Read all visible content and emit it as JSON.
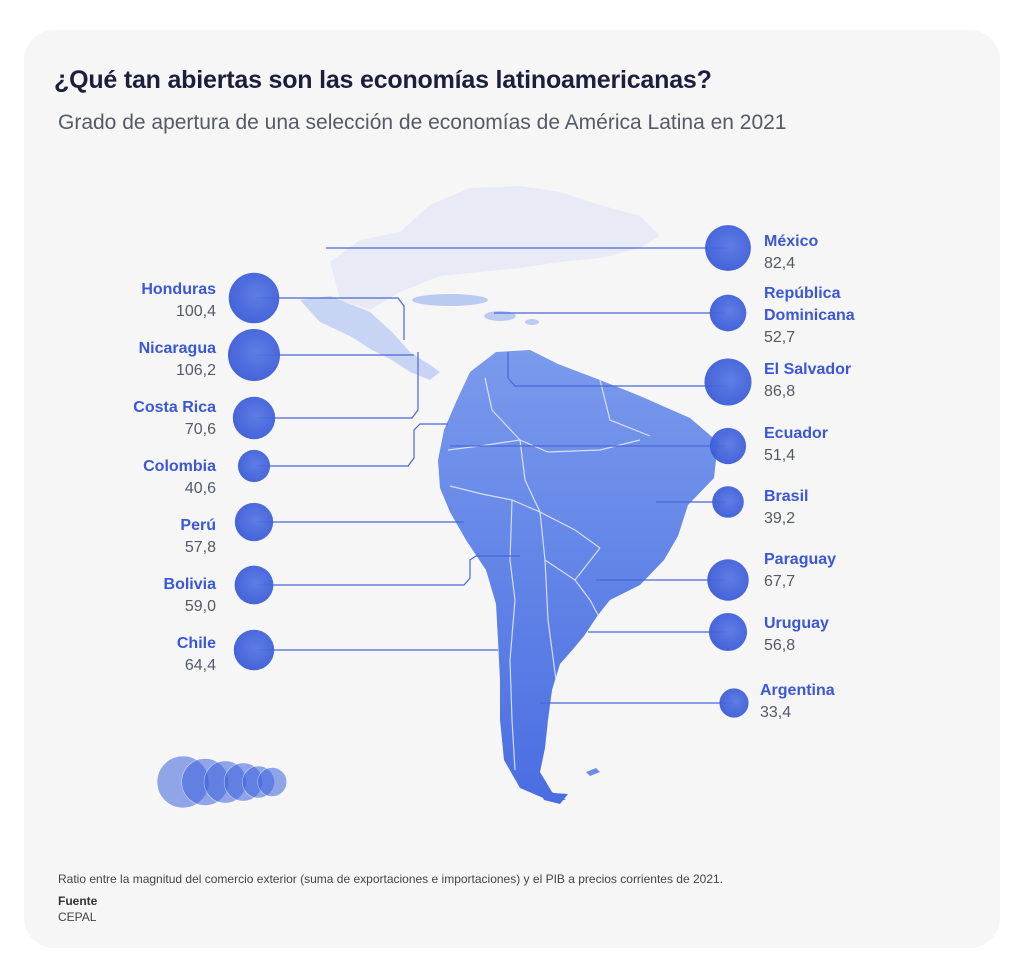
{
  "title": "¿Qué tan abiertas son las economías latinoamericanas?",
  "subtitle": "Grado de apertura de una selección de economías de América Latina en 2021",
  "note": "Ratio entre la magnitud del comercio exterior (suma de exportaciones e importaciones) y el PIB a precios corrientes de 2021.",
  "source_label": "Fuente",
  "source_name": "CEPAL",
  "colors": {
    "label": "#3a57d8",
    "bubble": "#3d63dc",
    "line": "#4a66d6",
    "land": "#5b80e6"
  },
  "chart_data": {
    "type": "bubble-map",
    "countries": [
      {
        "name": "México",
        "value": "82,4",
        "v": 82.4,
        "side": "right"
      },
      {
        "name": "República Dominicana",
        "name_lines": [
          "República",
          "Dominicana"
        ],
        "value": "52,7",
        "v": 52.7,
        "side": "right"
      },
      {
        "name": "El Salvador",
        "value": "86,8",
        "v": 86.8,
        "side": "right"
      },
      {
        "name": "Ecuador",
        "value": "51,4",
        "v": 51.4,
        "side": "right"
      },
      {
        "name": "Brasil",
        "value": "39,2",
        "v": 39.2,
        "side": "right"
      },
      {
        "name": "Paraguay",
        "value": "67,7",
        "v": 67.7,
        "side": "right"
      },
      {
        "name": "Uruguay",
        "value": "56,8",
        "v": 56.8,
        "side": "right"
      },
      {
        "name": "Argentina",
        "value": "33,4",
        "v": 33.4,
        "side": "right"
      },
      {
        "name": "Honduras",
        "value": "100,4",
        "v": 100.4,
        "side": "left"
      },
      {
        "name": "Nicaragua",
        "value": "106,2",
        "v": 106.2,
        "side": "left"
      },
      {
        "name": "Costa Rica",
        "value": "70,6",
        "v": 70.6,
        "side": "left"
      },
      {
        "name": "Colombia",
        "value": "40,6",
        "v": 40.6,
        "side": "left"
      },
      {
        "name": "Perú",
        "value": "57,8",
        "v": 57.8,
        "side": "left"
      },
      {
        "name": "Bolivia",
        "value": "59,0",
        "v": 59.0,
        "side": "left"
      },
      {
        "name": "Chile",
        "value": "64,4",
        "v": 64.4,
        "side": "left"
      }
    ],
    "legend_values": [
      106.2,
      86.8,
      70.6,
      57.8,
      40.6,
      33.4
    ]
  }
}
